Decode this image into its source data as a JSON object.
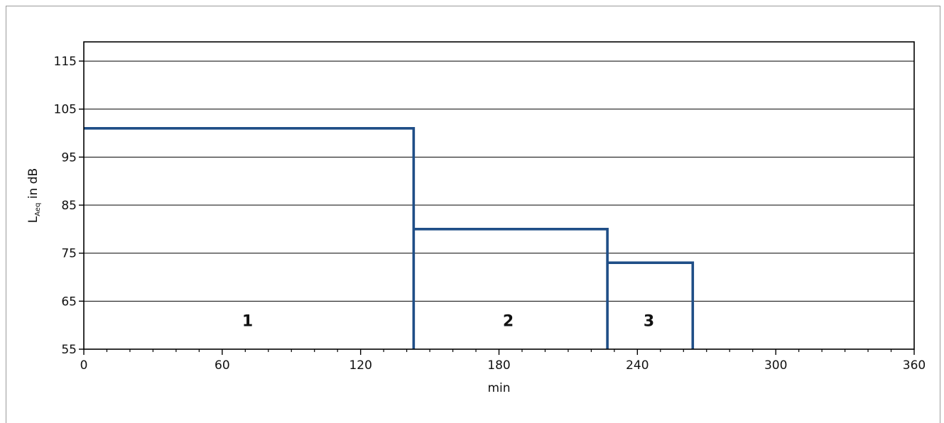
{
  "chart_data": {
    "type": "line",
    "step": true,
    "xlabel": "min",
    "ylabel": {
      "main": "L",
      "subscript": "Aeq",
      "suffix": " in dB"
    },
    "xlim": [
      0,
      360
    ],
    "ylim": [
      55,
      119
    ],
    "xticks": [
      0,
      60,
      120,
      180,
      240,
      300,
      360
    ],
    "yticks": [
      55,
      65,
      75,
      85,
      95,
      105,
      115
    ],
    "minor_x_step": 10,
    "grid": "horizontal",
    "line_color": "#1f4e87",
    "series": [
      {
        "points": [
          {
            "x": 0,
            "y": 101
          },
          {
            "x": 143,
            "y": 101
          },
          {
            "x": 143,
            "y": 55
          },
          {
            "x": 143,
            "y": 80
          },
          {
            "x": 227,
            "y": 80
          },
          {
            "x": 227,
            "y": 55
          },
          {
            "x": 227,
            "y": 73
          },
          {
            "x": 264,
            "y": 73
          },
          {
            "x": 264,
            "y": 55
          }
        ]
      }
    ],
    "annotations": [
      {
        "text": "1",
        "x": 71,
        "y": 61
      },
      {
        "text": "2",
        "x": 184,
        "y": 61
      },
      {
        "text": "3",
        "x": 245,
        "y": 61
      }
    ]
  }
}
